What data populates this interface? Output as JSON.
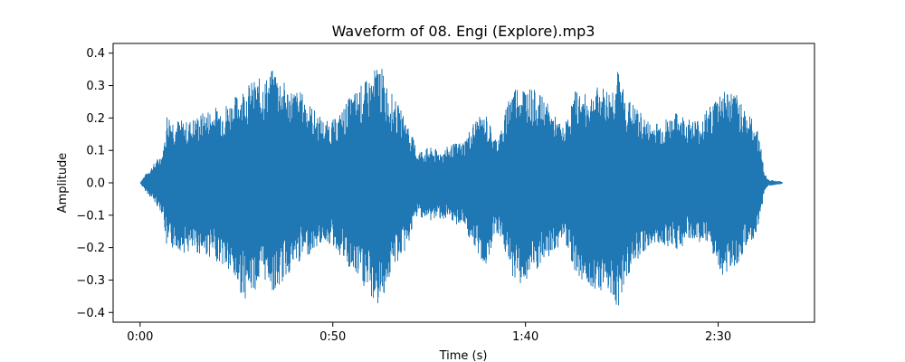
{
  "chart_data": {
    "type": "area",
    "title": "Waveform of 08. Engi (Explore).mp3",
    "xlabel": "Time (s)",
    "ylabel": "Amplitude",
    "xlim": [
      -7,
      175
    ],
    "ylim": [
      -0.43,
      0.43
    ],
    "x_ticks": [
      {
        "value": 0,
        "label": "0:00"
      },
      {
        "value": 50,
        "label": "0:50"
      },
      {
        "value": 100,
        "label": "1:40"
      },
      {
        "value": 150,
        "label": "2:30"
      }
    ],
    "y_ticks": [
      {
        "value": 0.4,
        "label": "0.4"
      },
      {
        "value": 0.3,
        "label": "0.3"
      },
      {
        "value": 0.2,
        "label": "0.2"
      },
      {
        "value": 0.1,
        "label": "0.1"
      },
      {
        "value": 0.0,
        "label": "0.0"
      },
      {
        "value": -0.1,
        "label": "−0.1"
      },
      {
        "value": -0.2,
        "label": "−0.2"
      },
      {
        "value": -0.3,
        "label": "−0.3"
      },
      {
        "value": -0.4,
        "label": "−0.4"
      }
    ],
    "grid": false,
    "color": "#1f77b4",
    "envelope": {
      "x": [
        0,
        1,
        3,
        6,
        7,
        9,
        12,
        15,
        18,
        21,
        24,
        27,
        30,
        33,
        35,
        38,
        42,
        45,
        48,
        51,
        54,
        57,
        60,
        62,
        64,
        66,
        69,
        72,
        75,
        78,
        81,
        84,
        87,
        90,
        92,
        94,
        96,
        99,
        102,
        105,
        108,
        110,
        113,
        116,
        119,
        122,
        124,
        126,
        129,
        132,
        135,
        138,
        140,
        142,
        145,
        148,
        151,
        154,
        156,
        158,
        160,
        161,
        162,
        163,
        166
      ],
      "upper": [
        0.0,
        0.02,
        0.05,
        0.1,
        0.22,
        0.2,
        0.19,
        0.21,
        0.23,
        0.24,
        0.26,
        0.3,
        0.32,
        0.33,
        0.36,
        0.3,
        0.28,
        0.23,
        0.19,
        0.2,
        0.26,
        0.3,
        0.33,
        0.38,
        0.31,
        0.26,
        0.2,
        0.1,
        0.11,
        0.1,
        0.12,
        0.13,
        0.2,
        0.21,
        0.14,
        0.17,
        0.3,
        0.31,
        0.29,
        0.26,
        0.2,
        0.17,
        0.29,
        0.27,
        0.3,
        0.29,
        0.35,
        0.27,
        0.23,
        0.19,
        0.19,
        0.21,
        0.22,
        0.2,
        0.2,
        0.24,
        0.3,
        0.28,
        0.26,
        0.21,
        0.18,
        0.12,
        0.03,
        0.01,
        0.005
      ],
      "lower": [
        0.0,
        -0.02,
        -0.05,
        -0.1,
        -0.22,
        -0.2,
        -0.22,
        -0.22,
        -0.23,
        -0.25,
        -0.3,
        -0.36,
        -0.33,
        -0.3,
        -0.35,
        -0.29,
        -0.24,
        -0.21,
        -0.18,
        -0.21,
        -0.27,
        -0.31,
        -0.36,
        -0.39,
        -0.32,
        -0.26,
        -0.21,
        -0.1,
        -0.12,
        -0.11,
        -0.13,
        -0.13,
        -0.22,
        -0.26,
        -0.15,
        -0.18,
        -0.28,
        -0.32,
        -0.29,
        -0.25,
        -0.21,
        -0.17,
        -0.28,
        -0.32,
        -0.33,
        -0.34,
        -0.39,
        -0.3,
        -0.24,
        -0.2,
        -0.19,
        -0.2,
        -0.21,
        -0.18,
        -0.18,
        -0.22,
        -0.29,
        -0.26,
        -0.24,
        -0.19,
        -0.17,
        -0.1,
        -0.03,
        -0.01,
        -0.005
      ]
    }
  }
}
